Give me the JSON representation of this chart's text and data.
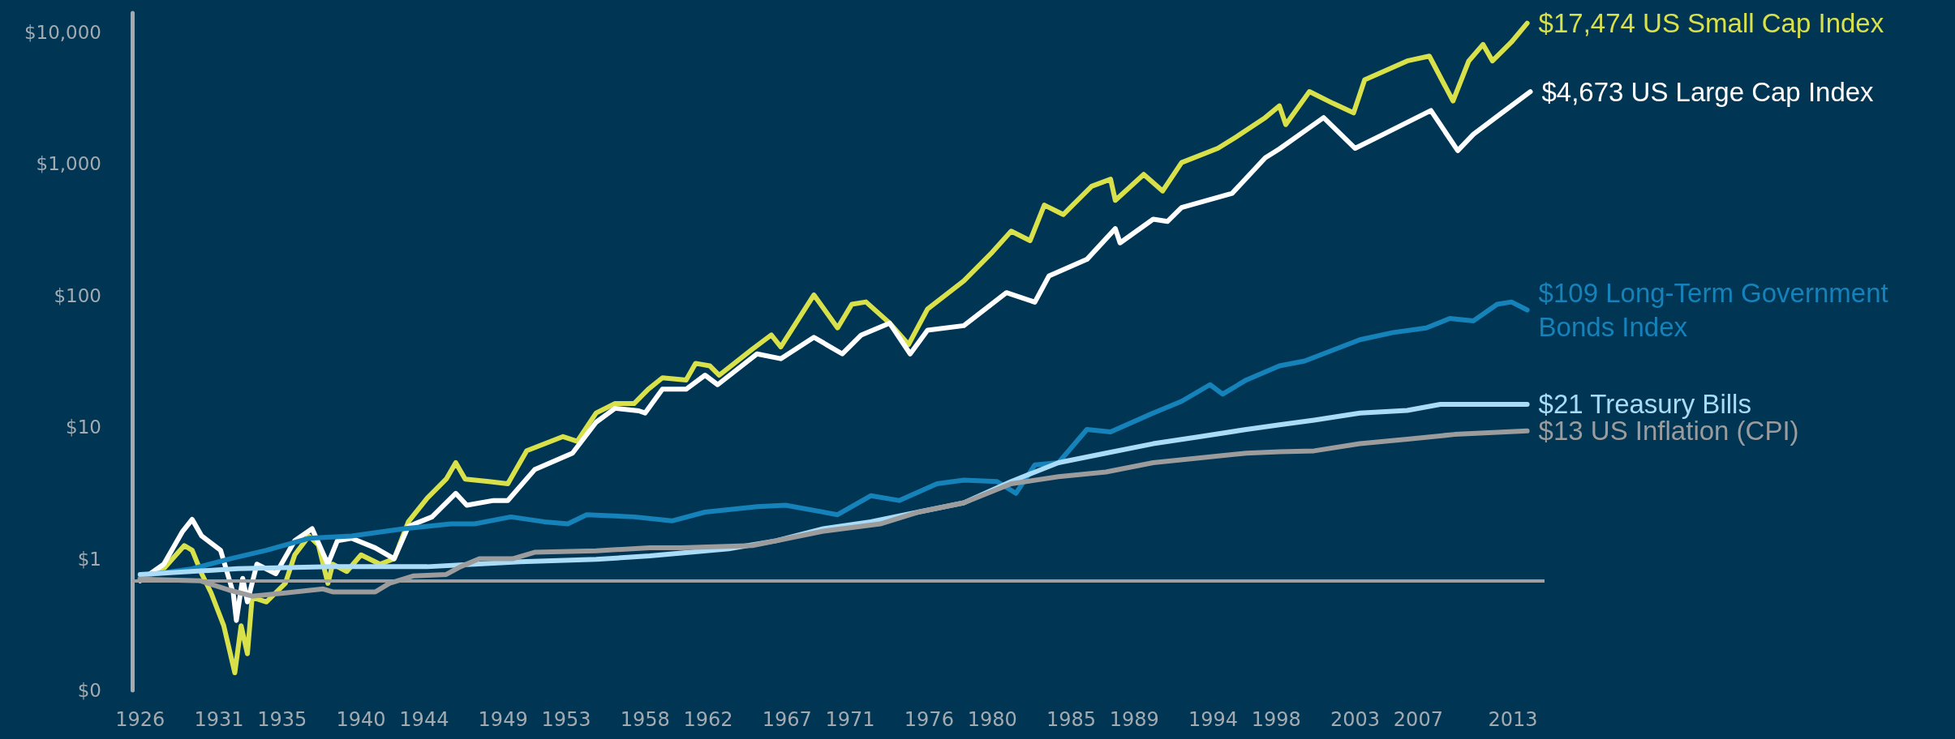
{
  "chart_data": {
    "type": "line",
    "log": "y",
    "grid": false,
    "legend": false,
    "marker": "none",
    "line_style": "solid",
    "xlim": [
      1925.5,
      2015
    ],
    "xticks": [
      1926,
      1931,
      1935,
      1940,
      1944,
      1949,
      1953,
      1958,
      1962,
      1967,
      1971,
      1976,
      1980,
      1985,
      1989,
      1994,
      1998,
      2003,
      2007,
      2013
    ],
    "ylim": [
      0.1,
      14000
    ],
    "yticks": [
      {
        "value": 0.1,
        "label": "$0"
      },
      {
        "value": 1,
        "label": "$1"
      },
      {
        "value": 10,
        "label": "$10"
      },
      {
        "value": 100,
        "label": "$100"
      },
      {
        "value": 1000,
        "label": "$1,000"
      },
      {
        "value": 10000,
        "label": "$10,000"
      }
    ],
    "ref_lines": [
      {
        "axis": "y",
        "value": 0.68,
        "label": null,
        "color": "#a0a0a0"
      }
    ],
    "series": [
      {
        "name": "$17,474 US Small Cap Index",
        "color": "#d8e04a",
        "x": [
          1926,
          1927.5,
          1928.8,
          1929.3,
          1929.9,
          1930.5,
          1931.3,
          1932,
          1932.4,
          1932.8,
          1933.1,
          1934,
          1935.2,
          1935.8,
          1936.7,
          1937.3,
          1937.9,
          1938.2,
          1939.1,
          1940,
          1941.2,
          1942.1,
          1943,
          1944.2,
          1945.4,
          1946,
          1946.6,
          1948.1,
          1949.3,
          1950.5,
          1952.8,
          1953.7,
          1954.9,
          1956.1,
          1957.3,
          1958.2,
          1959.1,
          1960.6,
          1961.2,
          1962.1,
          1962.7,
          1964.8,
          1966,
          1966.6,
          1968.7,
          1970.2,
          1971.1,
          1972,
          1973.5,
          1974.7,
          1975.9,
          1978.2,
          1980,
          1981.2,
          1982.4,
          1983.3,
          1984.5,
          1986.3,
          1987.5,
          1987.8,
          1989.6,
          1990.8,
          1992,
          1994.3,
          1995.5,
          1997.3,
          1998.2,
          1998.6,
          2000.1,
          2001.6,
          2002.9,
          2003.6,
          2006.3,
          2007.7,
          2009.2,
          2010.2,
          2011.1,
          2011.7,
          2012.9,
          2013.9
        ],
        "values": [
          0.71,
          0.84,
          1.26,
          1.16,
          0.77,
          0.55,
          0.31,
          0.136,
          0.31,
          0.19,
          0.51,
          0.47,
          0.65,
          1.07,
          1.49,
          1.27,
          0.65,
          0.91,
          0.8,
          1.07,
          0.91,
          1.0,
          1.91,
          2.89,
          4.03,
          5.37,
          4.03,
          3.86,
          3.71,
          6.61,
          8.47,
          7.8,
          12.8,
          15.1,
          15.1,
          19.4,
          23.7,
          22.8,
          30.5,
          29.2,
          24.8,
          39.1,
          50.1,
          40.7,
          101,
          56.7,
          85.7,
          89.3,
          61.6,
          42.4,
          78.9,
          129,
          213,
          308,
          261,
          486,
          412,
          676,
          765,
          528,
          832,
          622,
          1023,
          1312,
          1612,
          2244,
          2757,
          1986,
          3540,
          2880,
          2440,
          4350,
          6050,
          6580,
          3000,
          6050,
          8070,
          6050,
          8410,
          11700
        ]
      },
      {
        "name": "$4,673 US Large Cap Index",
        "color": "#ffffff",
        "x": [
          1926,
          1927.5,
          1928.7,
          1929.3,
          1929.9,
          1931.1,
          1931.9,
          1932.1,
          1932.5,
          1932.8,
          1933.4,
          1934.6,
          1935.8,
          1936.9,
          1937.9,
          1938.5,
          1939.4,
          1940.9,
          1942.1,
          1943,
          1944.5,
          1946,
          1946.7,
          1948.4,
          1949.3,
          1951,
          1953.4,
          1954.9,
          1956.1,
          1957.6,
          1958,
          1959.1,
          1960.6,
          1961.8,
          1962.6,
          1965.1,
          1966.6,
          1968.7,
          1970.5,
          1971.7,
          1973.5,
          1974.8,
          1975.9,
          1978.2,
          1980.9,
          1982.7,
          1983.6,
          1986,
          1987.8,
          1988.1,
          1990.2,
          1991.1,
          1992,
          1995.2,
          1997.3,
          1998.2,
          2001,
          2003,
          2004.8,
          2007.8,
          2009.5,
          2010.5,
          2012.3,
          2014.1
        ],
        "values": [
          0.68,
          0.91,
          1.62,
          1.99,
          1.49,
          1.16,
          0.55,
          0.34,
          0.71,
          0.47,
          0.91,
          0.77,
          1.37,
          1.69,
          0.91,
          1.37,
          1.43,
          1.21,
          1.0,
          1.76,
          2.08,
          3.14,
          2.55,
          2.77,
          2.77,
          4.75,
          6.34,
          10.9,
          13.9,
          13.3,
          12.8,
          19.4,
          19.4,
          24.8,
          21,
          36,
          33.1,
          48.1,
          36,
          50.1,
          61.6,
          36,
          54.4,
          59,
          105,
          89,
          141,
          188,
          322,
          251,
          380,
          365,
          466,
          597,
          1112,
          1300,
          2244,
          1312,
          1680,
          2540,
          1259,
          1680,
          2440,
          3530
        ]
      },
      {
        "name": "$109 Long-Term Government Bonds Index",
        "color": "#1582ba",
        "x": [
          1926,
          1929.3,
          1931.7,
          1934,
          1936.7,
          1939.4,
          1942.7,
          1945.7,
          1947.2,
          1949.5,
          1951.6,
          1953.1,
          1954.3,
          1957.3,
          1959.7,
          1961.8,
          1965.1,
          1966.9,
          1970.2,
          1972.3,
          1974.1,
          1976.5,
          1978.2,
          1980.3,
          1981.5,
          1982.7,
          1984.2,
          1986,
          1987.5,
          1990.2,
          1992,
          1993.8,
          1994.6,
          1996.1,
          1998.2,
          1999.8,
          2003.3,
          2005.4,
          2007.5,
          2009,
          2010.5,
          2012,
          2012.9,
          2013.9
        ],
        "values": [
          0.74,
          0.84,
          1.0,
          1.16,
          1.43,
          1.49,
          1.69,
          1.84,
          1.84,
          2.08,
          1.91,
          1.84,
          2.16,
          2.08,
          1.94,
          2.26,
          2.49,
          2.55,
          2.16,
          3.01,
          2.77,
          3.71,
          3.96,
          3.86,
          3.14,
          5.16,
          5.37,
          9.6,
          9.2,
          12.8,
          15.7,
          21,
          17.8,
          22.8,
          29.2,
          31.8,
          46.1,
          52.3,
          56.7,
          66.9,
          64.2,
          85.7,
          89.3,
          77.6
        ]
      },
      {
        "name": "$21 Treasury Bills",
        "color": "#aadcf7",
        "x": [
          1926,
          1932.2,
          1938.2,
          1944.2,
          1947.2,
          1950.1,
          1954.9,
          1958.3,
          1963.3,
          1966.3,
          1969.3,
          1972.3,
          1975.3,
          1978.2,
          1981.2,
          1984.2,
          1987.2,
          1990.2,
          1993.2,
          1996.1,
          1998.2,
          2000.4,
          2003.3,
          2006.3,
          2008.4,
          2013.9
        ],
        "values": [
          0.76,
          0.84,
          0.87,
          0.87,
          0.91,
          0.95,
          0.99,
          1.05,
          1.19,
          1.37,
          1.69,
          1.91,
          2.26,
          2.66,
          3.86,
          5.37,
          6.34,
          7.48,
          8.47,
          9.6,
          10.4,
          11.3,
          12.8,
          13.4,
          14.9,
          14.9
        ]
      },
      {
        "name": "$13 US Inflation (CPI)",
        "color": "#9c9c9c",
        "x": [
          1926,
          1929.8,
          1931.6,
          1933.1,
          1935.2,
          1937.6,
          1938.2,
          1940.9,
          1941.8,
          1943.3,
          1945.4,
          1946.3,
          1947.5,
          1949.6,
          1951,
          1954.9,
          1958.3,
          1960.3,
          1964.8,
          1969.3,
          1972.9,
          1975.3,
          1978.2,
          1981.2,
          1984.2,
          1987.2,
          1990.2,
          1993.2,
          1996.1,
          1998.2,
          2000.4,
          2003.3,
          2006.3,
          2009.3,
          2013.9
        ],
        "values": [
          0.7,
          0.68,
          0.58,
          0.52,
          0.55,
          0.59,
          0.56,
          0.56,
          0.65,
          0.74,
          0.76,
          0.87,
          1.0,
          1.0,
          1.12,
          1.15,
          1.21,
          1.21,
          1.26,
          1.62,
          1.84,
          2.26,
          2.66,
          3.71,
          4.2,
          4.56,
          5.37,
          5.84,
          6.34,
          6.5,
          6.6,
          7.48,
          8.1,
          8.8,
          9.35
        ]
      }
    ]
  }
}
